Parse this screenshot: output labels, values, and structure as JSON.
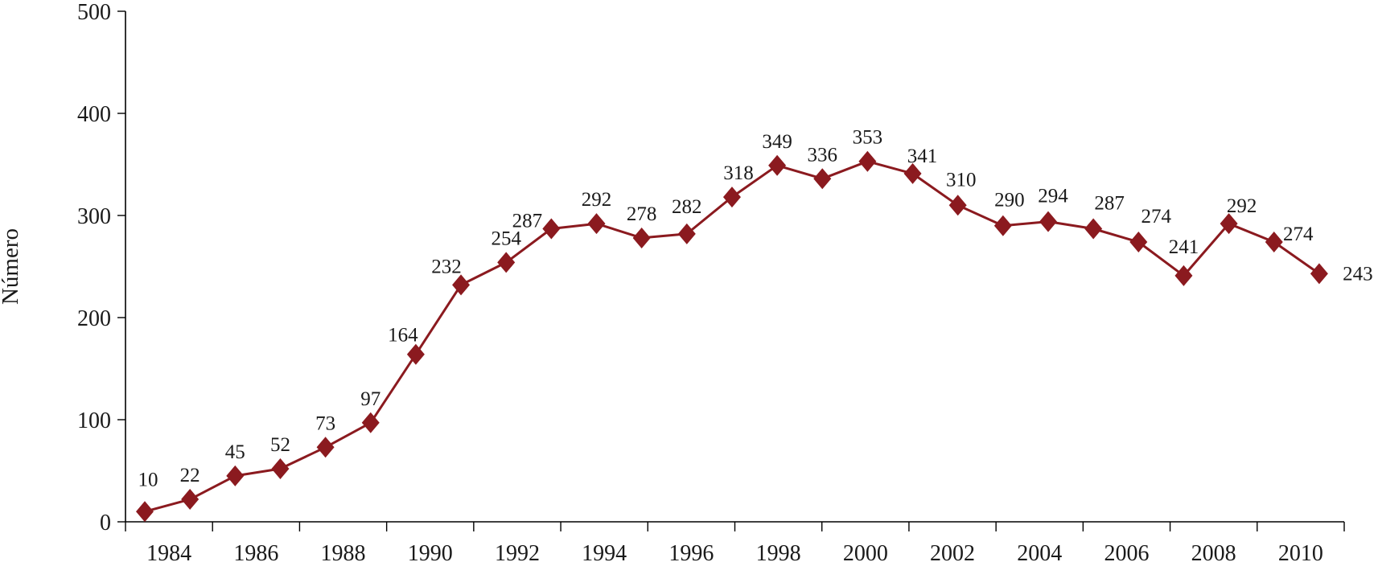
{
  "chart_data": {
    "type": "line",
    "title": "",
    "xlabel": "",
    "ylabel": "Número",
    "ylim": [
      0,
      500
    ],
    "y_ticks": [
      0,
      100,
      200,
      300,
      400,
      500
    ],
    "x_tick_labels": [
      "1984",
      "1986",
      "1988",
      "1990",
      "1992",
      "1994",
      "1996",
      "1998",
      "2000",
      "2002",
      "2004",
      "2006",
      "2008",
      "2010"
    ],
    "x": [
      1984,
      1985,
      1986,
      1987,
      1988,
      1989,
      1990,
      1991,
      1992,
      1993,
      1994,
      1995,
      1996,
      1997,
      1998,
      1999,
      2000,
      2001,
      2002,
      2003,
      2004,
      2005,
      2006,
      2007,
      2008,
      2009,
      2010
    ],
    "series": [
      {
        "color": "#8b1a1f",
        "marker": "diamond",
        "values": [
          10,
          22,
          45,
          52,
          73,
          97,
          164,
          232,
          254,
          287,
          292,
          278,
          282,
          318,
          349,
          336,
          353,
          341,
          310,
          290,
          294,
          287,
          274,
          241,
          292,
          274,
          243
        ]
      }
    ],
    "data_labels": [
      "10",
      "22",
      "45",
      "52",
      "73",
      "97",
      "164",
      "232",
      "254",
      "287",
      "292",
      "278",
      "282",
      "318",
      "349",
      "336",
      "353",
      "341",
      "310",
      "290",
      "294",
      "287",
      "274",
      "241",
      "292",
      "274",
      "243"
    ],
    "grid": false,
    "legend": "none"
  }
}
